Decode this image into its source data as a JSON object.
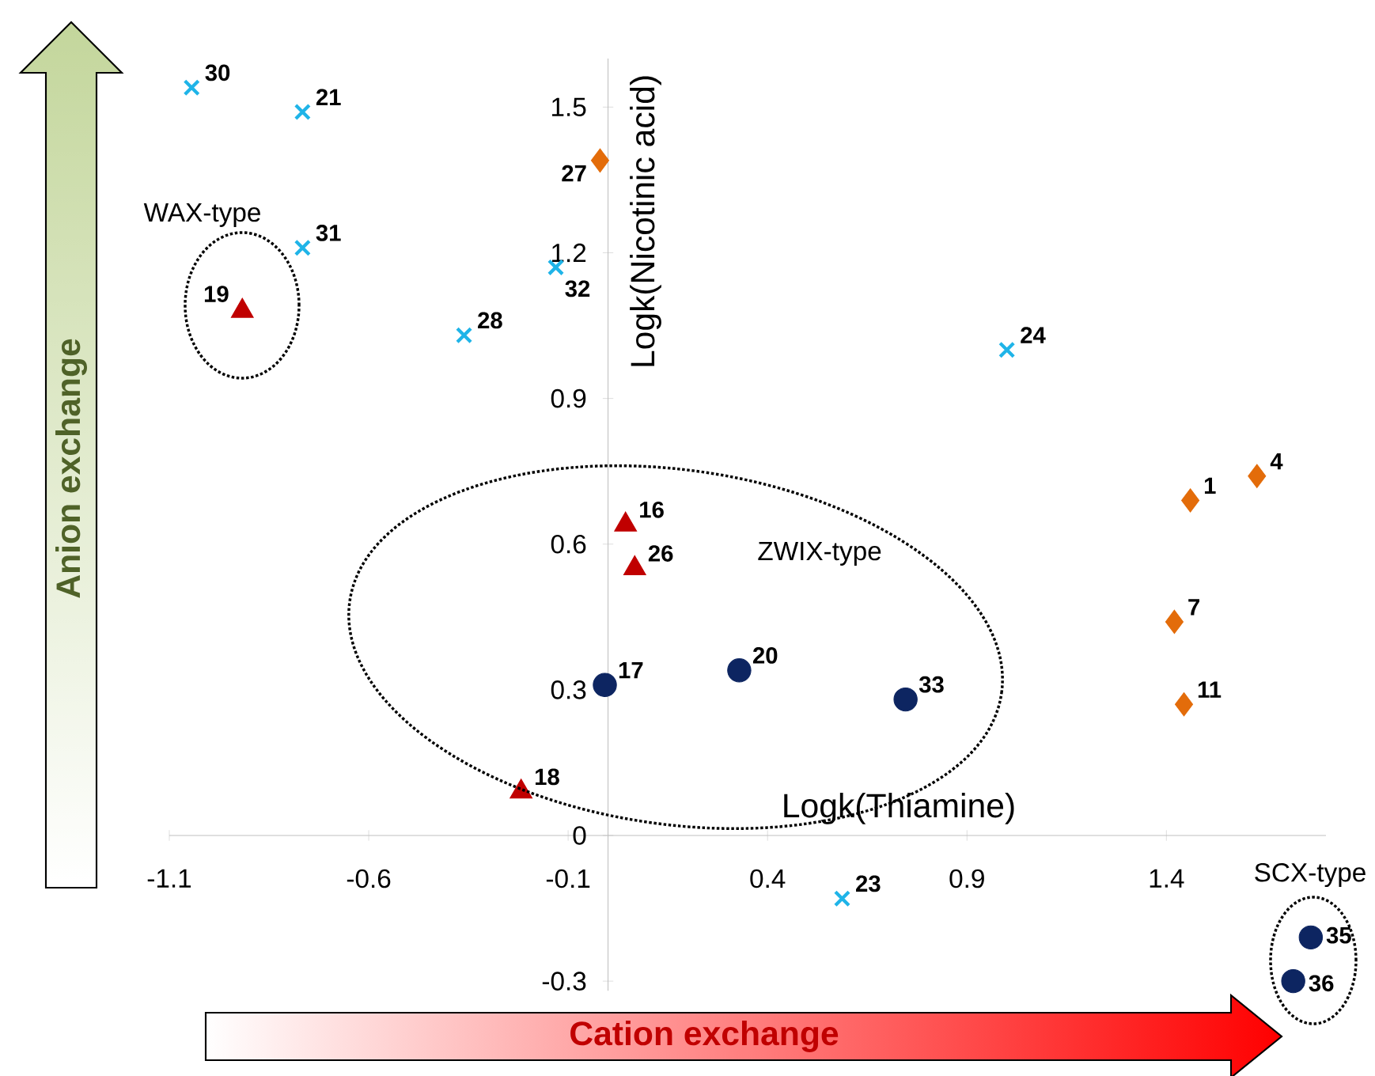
{
  "chart_data": {
    "type": "scatter",
    "xlabel": "Logk(Thiamine)",
    "ylabel": "Logk(Nicotinic acid)",
    "xlim": [
      -1.1,
      1.8
    ],
    "ylim": [
      -0.32,
      1.6
    ],
    "xticks": [
      -1.1,
      -0.6,
      -0.1,
      0.4,
      0.9,
      1.4
    ],
    "yticks": [
      -0.3,
      0,
      0.3,
      0.6,
      0.9,
      1.2,
      1.5
    ],
    "annotations": [
      "WAX-type",
      "ZWIX-type",
      "SCX-type",
      "Anion exchange",
      "Cation exchange",
      {
        "text": "30",
        "x": -1.044,
        "y": 1.54
      },
      {
        "text": "21",
        "x": -0.766,
        "y": 1.49
      },
      {
        "text": "31",
        "x": -0.766,
        "y": 1.21
      },
      {
        "text": "28",
        "x": -0.361,
        "y": 1.03
      },
      {
        "text": "32",
        "x": -0.131,
        "y": 1.17
      },
      {
        "text": "24",
        "x": 1.0,
        "y": 1.0
      },
      {
        "text": "23",
        "x": 0.587,
        "y": -0.13
      },
      {
        "text": "19",
        "x": -0.917,
        "y": 1.08
      },
      {
        "text": "16",
        "x": 0.044,
        "y": 0.64
      },
      {
        "text": "26",
        "x": 0.067,
        "y": 0.55
      },
      {
        "text": "18",
        "x": -0.218,
        "y": 0.09
      },
      {
        "text": "17",
        "x": -0.008,
        "y": 0.31
      },
      {
        "text": "20",
        "x": 0.329,
        "y": 0.34
      },
      {
        "text": "33",
        "x": 0.746,
        "y": 0.28
      },
      {
        "text": "35",
        "x": 1.762,
        "y": -0.21
      },
      {
        "text": "36",
        "x": 1.718,
        "y": -0.3
      },
      {
        "text": "27",
        "x": -0.02,
        "y": 1.39
      },
      {
        "text": "1",
        "x": 1.46,
        "y": 0.69
      },
      {
        "text": "4",
        "x": 1.627,
        "y": 0.74
      },
      {
        "text": "7",
        "x": 1.42,
        "y": 0.44
      },
      {
        "text": "11",
        "x": 1.444,
        "y": 0.27
      }
    ],
    "series": [
      {
        "color": "#1fb4e8",
        "marker": "cross",
        "x": [
          -1.044,
          -0.766,
          -0.766,
          -0.361,
          -0.131,
          1.0,
          0.587
        ],
        "values": [
          1.54,
          1.49,
          1.21,
          1.03,
          1.17,
          1.0,
          -0.13
        ]
      },
      {
        "color": "#c00000",
        "marker": "triangle",
        "x": [
          -0.917,
          0.044,
          0.067,
          -0.218
        ],
        "values": [
          1.08,
          0.64,
          0.55,
          0.09
        ]
      },
      {
        "color": "#0d2561",
        "marker": "circle",
        "x": [
          -0.008,
          0.329,
          0.746,
          1.762,
          1.718
        ],
        "values": [
          0.31,
          0.34,
          0.28,
          -0.21,
          -0.3
        ]
      },
      {
        "color": "#e36c0a",
        "marker": "diamond",
        "x": [
          -0.02,
          1.46,
          1.627,
          1.42,
          1.444
        ],
        "values": [
          1.39,
          0.69,
          0.74,
          0.44,
          0.27
        ]
      }
    ]
  }
}
